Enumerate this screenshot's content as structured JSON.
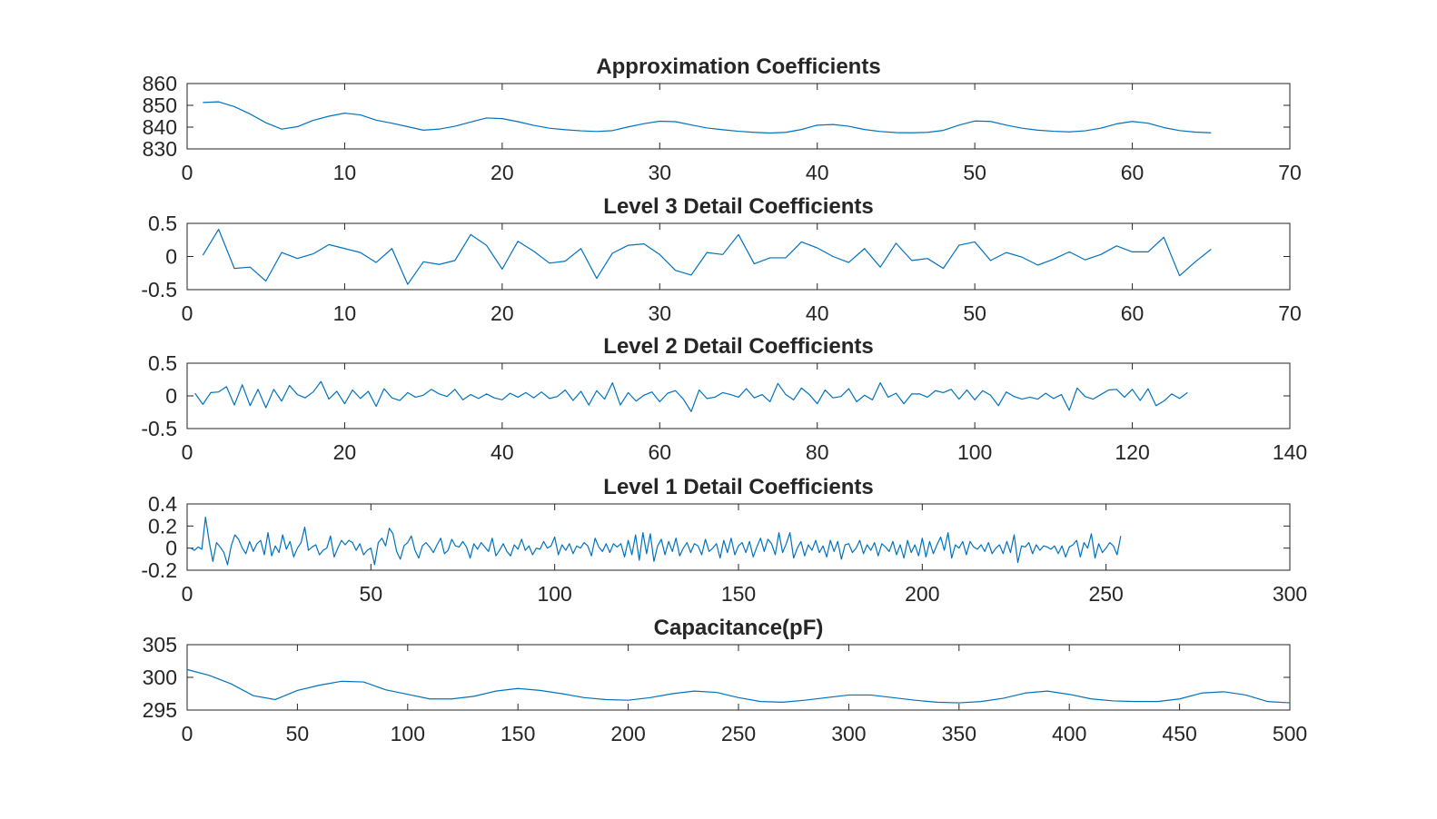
{
  "colors": {
    "series": "#0072BD",
    "axes": "#262626",
    "background": "#ffffff"
  },
  "chart_data": [
    {
      "type": "line",
      "title": "Approximation Coefficients",
      "xlabel": "",
      "ylabel": "",
      "xlim": [
        0,
        70
      ],
      "ylim": [
        830,
        860
      ],
      "xticks": [
        "0",
        "10",
        "20",
        "30",
        "40",
        "50",
        "60",
        "70"
      ],
      "yticks": [
        "830",
        "840",
        "850",
        "860"
      ],
      "grid": false,
      "series": [
        {
          "values": [
            851.3,
            851.6,
            849.4,
            846.0,
            842.0,
            839.1,
            840.2,
            843.1,
            845.0,
            846.4,
            845.6,
            843.2,
            841.8,
            840.2,
            838.6,
            839.1,
            840.4,
            842.3,
            844.2,
            843.9,
            842.5,
            840.8,
            839.5,
            838.8,
            838.3,
            838.0,
            838.4,
            840.1,
            841.6,
            842.7,
            842.5,
            841.0,
            839.6,
            838.8,
            838.1,
            837.6,
            837.3,
            837.6,
            838.9,
            840.9,
            841.2,
            840.4,
            838.9,
            838.0,
            837.5,
            837.4,
            837.6,
            838.5,
            840.9,
            842.8,
            842.6,
            840.9,
            839.5,
            838.6,
            838.1,
            837.8,
            838.3,
            839.5,
            841.5,
            842.6,
            841.8,
            839.8,
            838.4,
            837.7,
            837.4
          ]
        }
      ]
    },
    {
      "type": "line",
      "title": "Level 3 Detail Coefficients",
      "xlabel": "",
      "ylabel": "",
      "xlim": [
        0,
        70
      ],
      "ylim": [
        -0.5,
        0.5
      ],
      "xticks": [
        "0",
        "10",
        "20",
        "30",
        "40",
        "50",
        "60",
        "70"
      ],
      "yticks": [
        "-0.5",
        "0",
        "0.5"
      ],
      "grid": false,
      "series": [
        {
          "values": [
            0.02,
            0.41,
            -0.18,
            -0.16,
            -0.37,
            0.06,
            -0.03,
            0.04,
            0.18,
            0.12,
            0.06,
            -0.09,
            0.12,
            -0.42,
            -0.08,
            -0.12,
            -0.06,
            0.33,
            0.17,
            -0.19,
            0.23,
            0.08,
            -0.1,
            -0.07,
            0.12,
            -0.33,
            0.05,
            0.17,
            0.19,
            0.03,
            -0.21,
            -0.28,
            0.06,
            0.03,
            0.33,
            -0.11,
            -0.02,
            -0.02,
            0.22,
            0.13,
            0.0,
            -0.09,
            0.12,
            -0.16,
            0.2,
            -0.06,
            -0.03,
            -0.18,
            0.17,
            0.22,
            -0.06,
            0.06,
            -0.01,
            -0.13,
            -0.04,
            0.07,
            -0.05,
            0.03,
            0.16,
            0.07,
            0.07,
            0.29,
            -0.29,
            -0.08,
            0.11
          ]
        }
      ]
    },
    {
      "type": "line",
      "title": "Level 2 Detail Coefficients",
      "xlabel": "",
      "ylabel": "",
      "xlim": [
        0,
        140
      ],
      "ylim": [
        -0.5,
        0.5
      ],
      "xticks": [
        "0",
        "20",
        "40",
        "60",
        "80",
        "100",
        "120",
        "140"
      ],
      "yticks": [
        "-0.5",
        "0",
        "0.5"
      ],
      "grid": false,
      "series": [
        {
          "values": [
            0.04,
            -0.13,
            0.05,
            0.06,
            0.14,
            -0.14,
            0.17,
            -0.15,
            0.1,
            -0.18,
            0.1,
            -0.08,
            0.16,
            0.02,
            -0.03,
            0.06,
            0.22,
            -0.05,
            0.07,
            -0.12,
            0.09,
            -0.04,
            0.07,
            -0.16,
            0.11,
            -0.03,
            -0.07,
            0.05,
            -0.02,
            0.01,
            0.1,
            0.03,
            -0.01,
            0.1,
            -0.06,
            0.02,
            -0.04,
            0.03,
            -0.03,
            -0.06,
            0.04,
            -0.02,
            0.05,
            -0.03,
            0.06,
            -0.04,
            -0.01,
            0.09,
            -0.07,
            0.07,
            -0.14,
            0.08,
            -0.05,
            0.2,
            -0.14,
            0.05,
            -0.08,
            0.01,
            0.06,
            -0.09,
            0.04,
            0.08,
            -0.05,
            -0.24,
            0.09,
            -0.04,
            -0.02,
            0.05,
            0.02,
            -0.02,
            0.11,
            -0.03,
            0.02,
            -0.09,
            0.19,
            0.02,
            -0.06,
            0.12,
            0.02,
            -0.12,
            0.09,
            -0.03,
            -0.01,
            0.11,
            -0.09,
            0.01,
            -0.06,
            0.2,
            -0.02,
            0.04,
            -0.12,
            0.03,
            0.03,
            -0.02,
            0.08,
            0.05,
            0.1,
            -0.05,
            0.09,
            -0.06,
            0.08,
            0.01,
            -0.15,
            0.06,
            -0.01,
            -0.05,
            -0.02,
            -0.05,
            0.04,
            -0.04,
            0.02,
            -0.22,
            0.12,
            -0.01,
            -0.05,
            0.02,
            0.09,
            0.1,
            -0.02,
            0.1,
            -0.07,
            0.11,
            -0.15,
            -0.08,
            0.03,
            -0.04,
            0.05
          ]
        }
      ]
    },
    {
      "type": "line",
      "title": "Level 1 Detail Coefficients",
      "xlabel": "",
      "ylabel": "",
      "xlim": [
        0,
        300
      ],
      "ylim": [
        -0.2,
        0.4
      ],
      "xticks": [
        "0",
        "50",
        "100",
        "150",
        "200",
        "250",
        "300"
      ],
      "yticks": [
        "-0.2",
        "0",
        "0.2",
        "0.4"
      ],
      "grid": false,
      "series": [
        {
          "values": [
            0.0,
            -0.02,
            0.01,
            -0.01,
            0.28,
            0.06,
            -0.12,
            0.05,
            0.01,
            -0.04,
            -0.15,
            0.02,
            0.12,
            0.08,
            0.0,
            -0.05,
            0.06,
            -0.03,
            0.04,
            0.07,
            -0.06,
            0.14,
            -0.07,
            0.02,
            -0.04,
            0.12,
            -0.01,
            0.06,
            -0.08,
            0.0,
            0.05,
            0.19,
            -0.02,
            0.01,
            0.03,
            -0.06,
            -0.02,
            0.0,
            0.11,
            -0.08,
            0.0,
            0.07,
            0.03,
            0.07,
            0.05,
            -0.02,
            0.04,
            -0.06,
            -0.02,
            0.0,
            -0.15,
            0.05,
            0.09,
            0.02,
            0.18,
            0.13,
            -0.03,
            -0.1,
            0.02,
            0.05,
            0.11,
            -0.02,
            -0.09,
            0.02,
            0.05,
            0.01,
            -0.04,
            0.03,
            0.09,
            -0.05,
            -0.02,
            0.08,
            0.02,
            0.01,
            0.06,
            0.01,
            -0.09,
            0.04,
            -0.01,
            0.05,
            0.01,
            -0.03,
            0.09,
            -0.07,
            -0.02,
            0.04,
            -0.03,
            -0.07,
            0.03,
            -0.01,
            0.08,
            -0.02,
            0.02,
            -0.06,
            0.0,
            -0.01,
            0.06,
            0.0,
            0.02,
            0.1,
            -0.06,
            0.03,
            -0.02,
            0.04,
            -0.05,
            0.02,
            0.0,
            0.05,
            0.02,
            -0.07,
            0.09,
            0.01,
            -0.03,
            0.04,
            -0.04,
            0.04,
            0.01,
            0.04,
            -0.08,
            0.07,
            -0.06,
            0.12,
            -0.11,
            0.14,
            -0.05,
            0.13,
            -0.12,
            0.02,
            0.08,
            -0.06,
            0.06,
            -0.03,
            0.09,
            -0.07,
            0.0,
            0.05,
            -0.04,
            0.04,
            0.02,
            -0.06,
            0.08,
            -0.03,
            0.0,
            0.04,
            -0.09,
            0.07,
            -0.04,
            0.09,
            -0.06,
            0.02,
            0.05,
            -0.04,
            0.06,
            -0.08,
            0.01,
            0.09,
            -0.03,
            0.08,
            0.04,
            -0.06,
            0.14,
            -0.04,
            0.04,
            0.14,
            -0.09,
            0.0,
            0.06,
            -0.07,
            0.03,
            -0.02,
            0.07,
            -0.04,
            0.02,
            -0.08,
            0.07,
            -0.03,
            0.06,
            -0.1,
            0.03,
            0.04,
            -0.04,
            0.0,
            0.07,
            -0.05,
            0.03,
            -0.02,
            0.05,
            -0.07,
            0.04,
            0.01,
            -0.03,
            0.06,
            -0.06,
            0.03,
            -0.09,
            0.07,
            -0.04,
            0.03,
            -0.07,
            0.09,
            -0.08,
            0.06,
            -0.05,
            0.03,
            0.1,
            -0.02,
            0.14,
            -0.09,
            0.03,
            0.0,
            0.06,
            -0.06,
            0.06,
            0.01,
            -0.01,
            0.03,
            -0.03,
            0.05,
            -0.05,
            0.0,
            0.03,
            -0.05,
            0.06,
            -0.04,
            0.12,
            -0.13,
            0.02,
            0.01,
            0.05,
            -0.05,
            0.03,
            -0.02,
            0.02,
            0.01,
            -0.01,
            0.02,
            -0.05,
            0.02,
            -0.08,
            0.01,
            0.03,
            0.07,
            -0.08,
            0.05,
            0.0,
            0.13,
            -0.09,
            0.04,
            -0.04,
            0.0,
            0.05,
            0.02,
            -0.06,
            0.11
          ]
        }
      ]
    },
    {
      "type": "line",
      "title": "Capacitance(pF)",
      "xlabel": "",
      "ylabel": "",
      "xlim": [
        0,
        500
      ],
      "ylim": [
        295,
        305
      ],
      "xticks": [
        "0",
        "50",
        "100",
        "150",
        "200",
        "250",
        "300",
        "350",
        "400",
        "450",
        "500"
      ],
      "yticks": [
        "295",
        "300",
        "305"
      ],
      "grid": false,
      "series": [
        {
          "x": [
            0,
            10,
            20,
            30,
            40,
            50,
            60,
            70,
            80,
            90,
            100,
            110,
            120,
            130,
            140,
            150,
            160,
            170,
            180,
            190,
            200,
            210,
            220,
            230,
            240,
            250,
            260,
            270,
            280,
            290,
            300,
            310,
            320,
            330,
            340,
            350,
            360,
            370,
            380,
            390,
            400,
            410,
            420,
            430,
            440,
            450,
            460,
            470,
            480,
            490,
            500
          ],
          "values": [
            301.2,
            300.3,
            299.0,
            297.2,
            296.6,
            298.0,
            298.8,
            299.4,
            299.3,
            298.1,
            297.4,
            296.7,
            296.7,
            297.1,
            297.9,
            298.3,
            298.0,
            297.5,
            296.9,
            296.6,
            296.5,
            296.9,
            297.5,
            297.9,
            297.7,
            296.9,
            296.3,
            296.2,
            296.5,
            296.9,
            297.3,
            297.3,
            296.9,
            296.5,
            296.2,
            296.1,
            296.3,
            296.8,
            297.6,
            297.9,
            297.4,
            296.7,
            296.4,
            296.3,
            296.3,
            296.7,
            297.6,
            297.8,
            297.3,
            296.3,
            296.1
          ]
        }
      ]
    }
  ]
}
